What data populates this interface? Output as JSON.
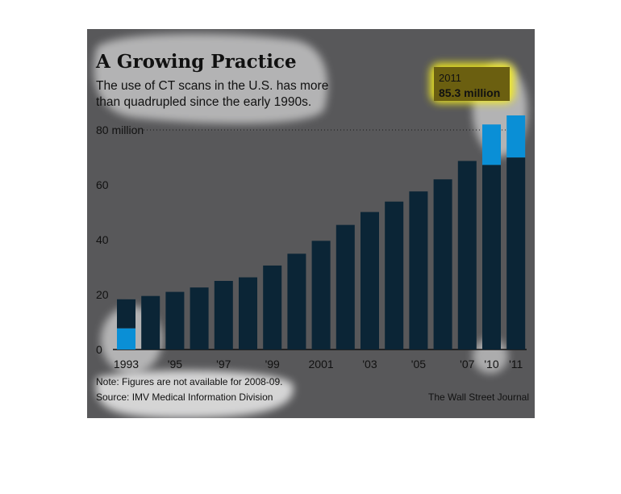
{
  "colors": {
    "background": "#58585a",
    "bar": "#0b2536",
    "bar_highlight": "#0a8fd6",
    "highlight_glow": "#ffffff",
    "callout_box": "#6b5f10",
    "callout_glow": "#f7ef1e",
    "gridline": "#1a1a1a"
  },
  "chart_data": {
    "type": "bar",
    "title": "A Growing Practice",
    "subtitle_lines": [
      "The use of CT scans in the U.S. has more",
      "than quadrupled since the early 1990s."
    ],
    "categories": [
      "1993",
      "1994",
      "1995",
      "1996",
      "1997",
      "1998",
      "1999",
      "2000",
      "2001",
      "2002",
      "2003",
      "2004",
      "2005",
      "2006",
      "2007",
      "2010",
      "2011"
    ],
    "values": [
      18.3,
      19.5,
      21,
      22.6,
      25,
      26.3,
      30.6,
      34.9,
      39.6,
      45.4,
      50.1,
      53.9,
      57.6,
      62,
      68.7,
      82,
      85.3
    ],
    "ylim": [
      0,
      80
    ],
    "yticks": [
      {
        "value": 0,
        "label": "0"
      },
      {
        "value": 20,
        "label": "20"
      },
      {
        "value": 40,
        "label": "40"
      },
      {
        "value": 60,
        "label": "60"
      },
      {
        "value": 80,
        "label": "80 million"
      }
    ],
    "xtick_labels": [
      {
        "index": 0,
        "label": "1993"
      },
      {
        "index": 2,
        "label": "'95"
      },
      {
        "index": 4,
        "label": "'97"
      },
      {
        "index": 6,
        "label": "'99"
      },
      {
        "index": 8,
        "label": "2001"
      },
      {
        "index": 10,
        "label": "'03"
      },
      {
        "index": 12,
        "label": "'05"
      },
      {
        "index": 14,
        "label": "'07"
      },
      {
        "index": 15,
        "label": "'10"
      },
      {
        "index": 16,
        "label": "'11"
      }
    ],
    "highlighted_indices": [
      0,
      15,
      16
    ],
    "callout": {
      "year": "2011",
      "value": "85.3 million"
    },
    "grid": "dotted horizontal at 80",
    "legend": "none"
  },
  "footer": {
    "note": "Note: Figures are not available for 2008-09.",
    "source": "Source: IMV Medical Information Division",
    "credit": "The Wall Street Journal"
  }
}
